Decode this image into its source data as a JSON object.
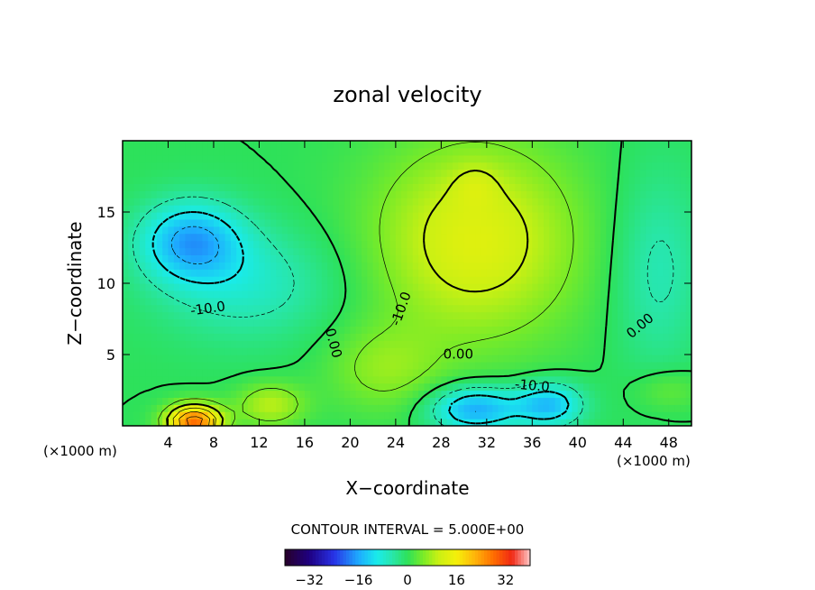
{
  "chart_data": {
    "type": "heatmap",
    "title": "zonal velocity",
    "xlabel": "X−coordinate",
    "ylabel": "Z−coordinate",
    "x_unit_left": "(×1000 m)",
    "x_unit_right": "(×1000 m)",
    "xlim": [
      0,
      50
    ],
    "ylim": [
      0,
      20
    ],
    "x_ticks": [
      4,
      8,
      12,
      16,
      20,
      24,
      28,
      32,
      36,
      40,
      44,
      48
    ],
    "y_ticks": [
      5,
      10,
      15
    ],
    "contour_labels": [
      {
        "text": "-10.0",
        "x": 7.5,
        "y": 8.2,
        "angle": 8
      },
      {
        "text": "-10.0",
        "x": 24.5,
        "y": 8.2,
        "angle": 70
      },
      {
        "text": "0.00",
        "x": 18.5,
        "y": 5.8,
        "angle": -75
      },
      {
        "text": "0.00",
        "x": 29.5,
        "y": 5.0,
        "angle": 0
      },
      {
        "text": "-10.0",
        "x": 36.0,
        "y": 2.8,
        "angle": -5
      },
      {
        "text": "0.00",
        "x": 45.5,
        "y": 7.0,
        "angle": 40
      }
    ],
    "contour_interval_text": "CONTOUR INTERVAL = 5.000E+00",
    "colorbar": {
      "min": -40,
      "max": 40,
      "ticks": [
        -32,
        -16,
        0,
        16,
        32
      ]
    },
    "features": [
      {
        "kind": "max",
        "x": 6,
        "y": 0.6,
        "value": 30
      },
      {
        "kind": "max",
        "x": 31,
        "y": 16.5,
        "value": 15
      },
      {
        "kind": "min",
        "x": 6,
        "y": 13,
        "value": -15
      },
      {
        "kind": "min",
        "x": 31,
        "y": 1.2,
        "value": -16
      },
      {
        "kind": "min",
        "x": 37.5,
        "y": 2.3,
        "value": -18
      }
    ]
  }
}
